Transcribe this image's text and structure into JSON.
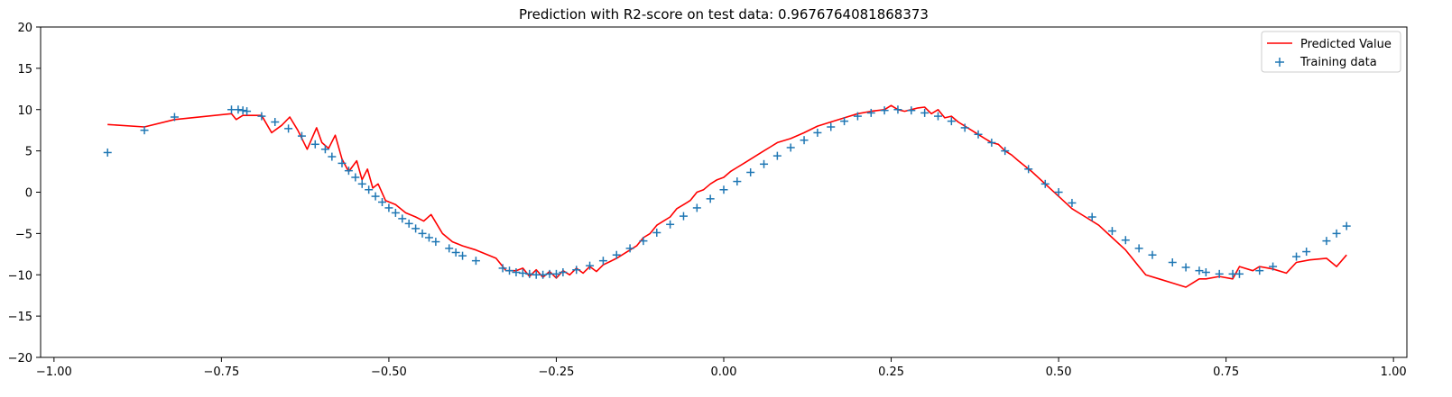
{
  "chart_data": {
    "type": "scatter",
    "title": "Prediction with R2-score on test data: 0.9676764081868373",
    "xlabel": "",
    "ylabel": "",
    "xlim": [
      -1.02,
      1.02
    ],
    "ylim": [
      -20,
      20
    ],
    "grid": false,
    "legend_position": "top-right",
    "xticks": [
      -1.0,
      -0.75,
      -0.5,
      -0.25,
      0.0,
      0.25,
      0.5,
      0.75,
      1.0
    ],
    "xtick_labels": [
      "−1.00",
      "−0.75",
      "−0.50",
      "−0.25",
      "0.00",
      "0.25",
      "0.50",
      "0.75",
      "1.00"
    ],
    "yticks": [
      -20,
      -15,
      -10,
      -5,
      0,
      5,
      10,
      15,
      20
    ],
    "ytick_labels": [
      "−20",
      "−15",
      "−10",
      "−5",
      "0",
      "5",
      "10",
      "15",
      "20"
    ],
    "series": [
      {
        "name": "Predicted Value",
        "kind": "line",
        "color": "#ff0000",
        "x": [
          -0.92,
          -0.865,
          -0.82,
          -0.735,
          -0.728,
          -0.718,
          -0.69,
          -0.675,
          -0.66,
          -0.648,
          -0.636,
          -0.622,
          -0.608,
          -0.6,
          -0.59,
          -0.58,
          -0.57,
          -0.56,
          -0.548,
          -0.54,
          -0.532,
          -0.524,
          -0.516,
          -0.505,
          -0.49,
          -0.475,
          -0.46,
          -0.448,
          -0.437,
          -0.42,
          -0.405,
          -0.39,
          -0.37,
          -0.34,
          -0.325,
          -0.31,
          -0.3,
          -0.29,
          -0.28,
          -0.27,
          -0.26,
          -0.25,
          -0.24,
          -0.23,
          -0.22,
          -0.21,
          -0.2,
          -0.19,
          -0.18,
          -0.17,
          -0.16,
          -0.15,
          -0.14,
          -0.13,
          -0.12,
          -0.11,
          -0.1,
          -0.09,
          -0.08,
          -0.07,
          -0.06,
          -0.05,
          -0.04,
          -0.03,
          -0.02,
          -0.01,
          0.0,
          0.01,
          0.02,
          0.03,
          0.04,
          0.05,
          0.06,
          0.07,
          0.08,
          0.1,
          0.12,
          0.14,
          0.16,
          0.18,
          0.2,
          0.22,
          0.24,
          0.25,
          0.26,
          0.27,
          0.28,
          0.29,
          0.3,
          0.31,
          0.32,
          0.33,
          0.34,
          0.35,
          0.37,
          0.39,
          0.4,
          0.41,
          0.42,
          0.43,
          0.44,
          0.46,
          0.48,
          0.5,
          0.52,
          0.54,
          0.56,
          0.58,
          0.6,
          0.61,
          0.62,
          0.63,
          0.65,
          0.67,
          0.69,
          0.7,
          0.71,
          0.72,
          0.74,
          0.76,
          0.77,
          0.79,
          0.8,
          0.82,
          0.84,
          0.855,
          0.875,
          0.9,
          0.915,
          0.93
        ],
        "y": [
          8.2,
          7.9,
          8.8,
          9.5,
          8.8,
          9.3,
          9.3,
          7.2,
          8.1,
          9.1,
          7.5,
          5.2,
          7.8,
          6.0,
          5.3,
          6.9,
          4.0,
          2.5,
          3.8,
          1.5,
          2.8,
          0.5,
          1.0,
          -1.0,
          -1.5,
          -2.5,
          -3.0,
          -3.5,
          -2.7,
          -5.0,
          -6.0,
          -6.5,
          -7.0,
          -8.0,
          -9.5,
          -9.5,
          -9.2,
          -10.2,
          -9.4,
          -10.3,
          -9.6,
          -10.4,
          -9.5,
          -10.0,
          -9.2,
          -9.8,
          -9.0,
          -9.6,
          -8.8,
          -8.4,
          -8.0,
          -7.5,
          -7.0,
          -6.5,
          -5.5,
          -5.0,
          -4.0,
          -3.5,
          -3.0,
          -2.0,
          -1.5,
          -1.0,
          0.0,
          0.3,
          1.0,
          1.5,
          1.8,
          2.5,
          3.0,
          3.5,
          4.0,
          4.5,
          5.0,
          5.5,
          6.0,
          6.5,
          7.2,
          8.0,
          8.5,
          9.0,
          9.5,
          9.8,
          10.0,
          10.5,
          10.0,
          9.8,
          10.0,
          10.2,
          10.3,
          9.5,
          10.0,
          9.0,
          9.2,
          8.5,
          7.5,
          6.5,
          6.0,
          5.8,
          5.0,
          4.5,
          3.8,
          2.5,
          1.0,
          -0.5,
          -2.0,
          -3.0,
          -4.0,
          -5.5,
          -7.0,
          -8.0,
          -9.0,
          -10.0,
          -10.5,
          -11.0,
          -11.5,
          -11.0,
          -10.5,
          -10.5,
          -10.2,
          -10.5,
          -9.0,
          -9.5,
          -9.0,
          -9.3,
          -9.8,
          -8.5,
          -8.2,
          -8.0,
          -9.0,
          -7.6
        ]
      },
      {
        "name": "Training data",
        "kind": "scatter",
        "marker": "+",
        "color": "#1f77b4",
        "x": [
          -0.92,
          -0.865,
          -0.82,
          -0.735,
          -0.725,
          -0.718,
          -0.712,
          -0.69,
          -0.67,
          -0.65,
          -0.63,
          -0.61,
          -0.595,
          -0.585,
          -0.57,
          -0.56,
          -0.55,
          -0.54,
          -0.53,
          -0.52,
          -0.51,
          -0.5,
          -0.49,
          -0.48,
          -0.47,
          -0.46,
          -0.45,
          -0.44,
          -0.43,
          -0.41,
          -0.4,
          -0.39,
          -0.37,
          -0.33,
          -0.32,
          -0.31,
          -0.3,
          -0.29,
          -0.28,
          -0.27,
          -0.26,
          -0.25,
          -0.24,
          -0.22,
          -0.2,
          -0.18,
          -0.16,
          -0.14,
          -0.12,
          -0.1,
          -0.08,
          -0.06,
          -0.04,
          -0.02,
          0.0,
          0.02,
          0.04,
          0.06,
          0.08,
          0.1,
          0.12,
          0.14,
          0.16,
          0.18,
          0.2,
          0.22,
          0.24,
          0.26,
          0.28,
          0.3,
          0.32,
          0.34,
          0.36,
          0.38,
          0.4,
          0.42,
          0.455,
          0.48,
          0.5,
          0.52,
          0.55,
          0.58,
          0.6,
          0.62,
          0.64,
          0.67,
          0.69,
          0.71,
          0.72,
          0.74,
          0.76,
          0.77,
          0.8,
          0.82,
          0.855,
          0.87,
          0.9,
          0.915,
          0.93
        ],
        "y": [
          4.8,
          7.5,
          9.1,
          10.0,
          10.0,
          9.9,
          9.8,
          9.2,
          8.5,
          7.7,
          6.8,
          5.8,
          5.2,
          4.3,
          3.5,
          2.6,
          1.8,
          1.0,
          0.3,
          -0.5,
          -1.2,
          -1.9,
          -2.5,
          -3.2,
          -3.8,
          -4.4,
          -5.0,
          -5.5,
          -6.0,
          -6.8,
          -7.3,
          -7.7,
          -8.3,
          -9.2,
          -9.5,
          -9.7,
          -9.8,
          -9.9,
          -10.0,
          -10.0,
          -9.9,
          -9.9,
          -9.7,
          -9.4,
          -8.9,
          -8.3,
          -7.6,
          -6.8,
          -5.9,
          -4.9,
          -3.9,
          -2.9,
          -1.9,
          -0.8,
          0.3,
          1.3,
          2.4,
          3.4,
          4.4,
          5.4,
          6.3,
          7.2,
          7.9,
          8.6,
          9.2,
          9.6,
          9.9,
          10.0,
          9.9,
          9.6,
          9.2,
          8.6,
          7.8,
          7.0,
          6.0,
          5.0,
          2.8,
          1.0,
          0.0,
          -1.3,
          -3.0,
          -4.7,
          -5.8,
          -6.8,
          -7.6,
          -8.5,
          -9.1,
          -9.5,
          -9.7,
          -9.9,
          -9.9,
          -9.9,
          -9.5,
          -9.0,
          -7.8,
          -7.2,
          -5.9,
          -5.0,
          -4.1
        ]
      }
    ]
  }
}
